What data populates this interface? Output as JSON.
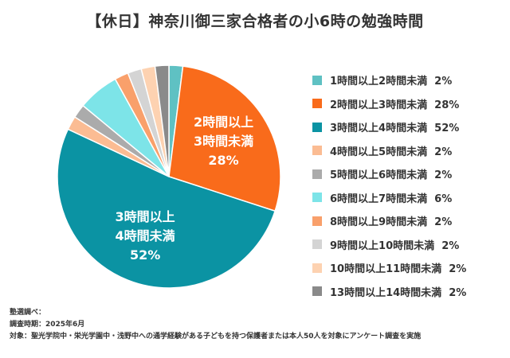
{
  "title": "【休日】神奈川御三家合格者の小6時の勉強時間",
  "chart_data": {
    "type": "pie",
    "title": "【休日】神奈川御三家合格者の小6時の勉強時間",
    "slices": [
      {
        "label": "1時間以上2時間未満",
        "value": 2,
        "value_label": "2%",
        "color": "#5fc1c3"
      },
      {
        "label": "2時間以上3時間未満",
        "value": 28,
        "value_label": "28%",
        "color": "#f96b1b",
        "inside_lines": [
          "2時間以上",
          "3時間未満",
          "28%"
        ]
      },
      {
        "label": "3時間以上4時間未満",
        "value": 52,
        "value_label": "52%",
        "color": "#0b93a3",
        "inside_lines": [
          "3時間以上",
          "4時間未満",
          "52%"
        ]
      },
      {
        "label": "4時間以上5時間未満",
        "value": 2,
        "value_label": "2%",
        "color": "#fbbc93"
      },
      {
        "label": "5時間以上6時間未満",
        "value": 2,
        "value_label": "2%",
        "color": "#ababab"
      },
      {
        "label": "6時間以上7時間未満",
        "value": 6,
        "value_label": "6%",
        "color": "#7de4e8"
      },
      {
        "label": "8時間以上9時間未満",
        "value": 2,
        "value_label": "2%",
        "color": "#f9a06b"
      },
      {
        "label": "9時間以上10時間未満",
        "value": 2,
        "value_label": "2%",
        "color": "#d4d4d4"
      },
      {
        "label": "10時間以上11時間未満",
        "value": 2,
        "value_label": "2%",
        "color": "#fdd2b1"
      },
      {
        "label": "13時間以上14時間未満",
        "value": 2,
        "value_label": "2%",
        "color": "#8a8a8a"
      }
    ],
    "legend_position": "right"
  },
  "footer": {
    "line1": "塾選調べ：",
    "line2": "調査時期：2025年6月",
    "line3": "対象：聖光学院中・栄光学園中・浅野中への通学経験がある子どもを持つ保護者または本人50人を対象にアンケート調査を実施"
  }
}
